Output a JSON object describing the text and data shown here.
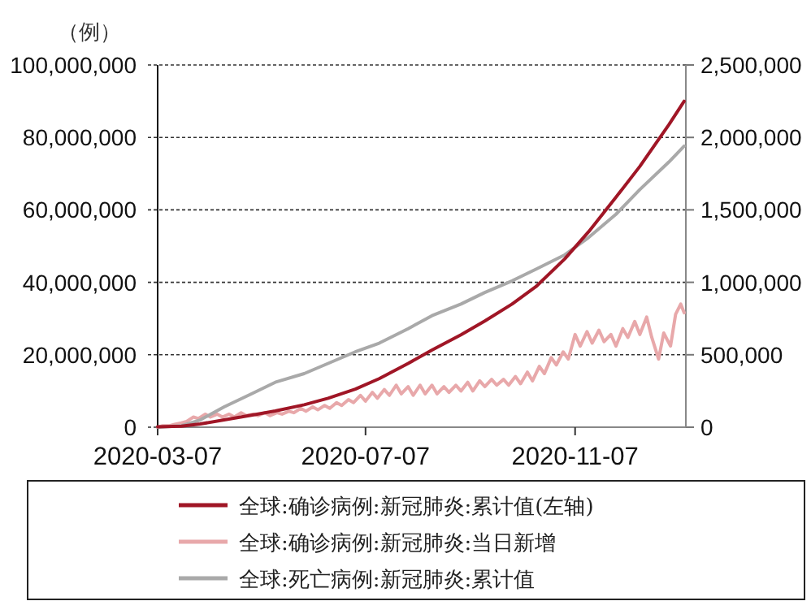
{
  "chart_data": {
    "type": "line",
    "ylabel": "（例）",
    "grid": "y",
    "legend": "bottom",
    "line_style": "solid",
    "marker": "none",
    "xlim": [
      "2020-03-07",
      "2021-01-11"
    ],
    "xticks": [
      "2020-03-07",
      "2020-07-07",
      "2020-11-07"
    ],
    "ylim": [
      0,
      100000000
    ],
    "yticks": [
      0,
      {
        "value": 20000000,
        "label": "20,000,000"
      },
      {
        "value": 40000000,
        "label": "40,000,000"
      },
      {
        "value": 60000000,
        "label": "60,000,000"
      },
      {
        "value": 80000000,
        "label": "80,000,000"
      },
      {
        "value": 100000000,
        "label": "100,000,000"
      }
    ],
    "y2lim": [
      0,
      2500000
    ],
    "y2ticks": [
      0,
      {
        "value": 500000,
        "label": "500,000"
      },
      {
        "value": 1000000,
        "label": "1,000,000"
      },
      {
        "value": 1500000,
        "label": "1,500,000"
      },
      {
        "value": 2000000,
        "label": "2,000,000"
      },
      {
        "value": 2500000,
        "label": "2,500,000"
      }
    ],
    "series": [
      {
        "name": "全球:确诊病例:新冠肺炎:累计值(左轴)",
        "color": "#a01626",
        "x": [
          "2020-03-07",
          "2020-03-21",
          "2020-04-01",
          "2020-04-15",
          "2020-05-01",
          "2020-05-15",
          "2020-06-01",
          "2020-06-15",
          "2020-07-01",
          "2020-07-15",
          "2020-08-01",
          "2020-08-15",
          "2020-09-01",
          "2020-09-15",
          "2020-10-01",
          "2020-10-15",
          "2020-11-01",
          "2020-11-15",
          "2020-12-01",
          "2020-12-15",
          "2021-01-01",
          "2021-01-10"
        ],
        "values": [
          100000,
          300000,
          900000,
          2000000,
          3300000,
          4500000,
          6200000,
          8000000,
          10500000,
          13400000,
          17600000,
          21300000,
          25500000,
          29300000,
          34000000,
          38800000,
          46500000,
          54000000,
          63500000,
          72000000,
          83500000,
          90000000
        ]
      },
      {
        "name": "全球:确诊病例:新冠肺炎:当日新增",
        "color": "#e8a8aa",
        "axis": "y2",
        "x": [
          "2020-03-07",
          "2020-03-10",
          "2020-03-14",
          "2020-03-17",
          "2020-03-21",
          "2020-03-24",
          "2020-03-28",
          "2020-03-31",
          "2020-04-04",
          "2020-04-07",
          "2020-04-11",
          "2020-04-14",
          "2020-04-18",
          "2020-04-21",
          "2020-04-25",
          "2020-04-28",
          "2020-05-02",
          "2020-05-05",
          "2020-05-09",
          "2020-05-12",
          "2020-05-16",
          "2020-05-19",
          "2020-05-23",
          "2020-05-26",
          "2020-05-30",
          "2020-06-02",
          "2020-06-06",
          "2020-06-09",
          "2020-06-13",
          "2020-06-16",
          "2020-06-20",
          "2020-06-23",
          "2020-06-27",
          "2020-06-30",
          "2020-07-04",
          "2020-07-07",
          "2020-07-11",
          "2020-07-14",
          "2020-07-18",
          "2020-07-21",
          "2020-07-25",
          "2020-07-28",
          "2020-08-01",
          "2020-08-04",
          "2020-08-08",
          "2020-08-11",
          "2020-08-15",
          "2020-08-18",
          "2020-08-22",
          "2020-08-25",
          "2020-08-29",
          "2020-09-01",
          "2020-09-05",
          "2020-09-08",
          "2020-09-12",
          "2020-09-15",
          "2020-09-19",
          "2020-09-22",
          "2020-09-26",
          "2020-09-29",
          "2020-10-03",
          "2020-10-06",
          "2020-10-10",
          "2020-10-13",
          "2020-10-17",
          "2020-10-20",
          "2020-10-24",
          "2020-10-27",
          "2020-10-31",
          "2020-11-03",
          "2020-11-07",
          "2020-11-10",
          "2020-11-14",
          "2020-11-17",
          "2020-11-21",
          "2020-11-24",
          "2020-11-28",
          "2020-12-01",
          "2020-12-05",
          "2020-12-08",
          "2020-12-12",
          "2020-12-15",
          "2020-12-19",
          "2020-12-22",
          "2020-12-26",
          "2020-12-29",
          "2021-01-02",
          "2021-01-05",
          "2021-01-08",
          "2021-01-10"
        ],
        "values": [
          0,
          10000,
          10000,
          20000,
          30000,
          40000,
          70000,
          60000,
          90000,
          70000,
          90000,
          70000,
          90000,
          70000,
          100000,
          80000,
          90000,
          80000,
          100000,
          80000,
          100000,
          90000,
          110000,
          100000,
          130000,
          110000,
          140000,
          120000,
          150000,
          130000,
          170000,
          150000,
          190000,
          170000,
          220000,
          180000,
          240000,
          200000,
          260000,
          220000,
          290000,
          230000,
          280000,
          220000,
          290000,
          230000,
          290000,
          230000,
          280000,
          240000,
          290000,
          250000,
          310000,
          250000,
          320000,
          280000,
          330000,
          290000,
          330000,
          290000,
          350000,
          300000,
          380000,
          320000,
          420000,
          370000,
          480000,
          430000,
          520000,
          470000,
          640000,
          560000,
          660000,
          580000,
          670000,
          590000,
          640000,
          560000,
          680000,
          620000,
          730000,
          640000,
          760000,
          620000,
          470000,
          650000,
          560000,
          780000,
          850000,
          790000
        ]
      },
      {
        "name": "全球:死亡病例:新冠肺炎:累计值",
        "color": "#a9a9a9",
        "axis": "y2",
        "x": [
          "2020-03-07",
          "2020-03-21",
          "2020-04-01",
          "2020-04-15",
          "2020-05-01",
          "2020-05-15",
          "2020-06-01",
          "2020-06-15",
          "2020-07-01",
          "2020-07-15",
          "2020-08-01",
          "2020-08-15",
          "2020-09-01",
          "2020-09-15",
          "2020-10-01",
          "2020-10-15",
          "2020-11-01",
          "2020-11-15",
          "2020-12-01",
          "2020-12-15",
          "2021-01-01",
          "2021-01-10"
        ],
        "values": [
          0,
          10000,
          50000,
          140000,
          230000,
          310000,
          370000,
          440000,
          520000,
          580000,
          680000,
          770000,
          850000,
          930000,
          1010000,
          1090000,
          1190000,
          1310000,
          1470000,
          1640000,
          1830000,
          1940000
        ]
      }
    ]
  }
}
